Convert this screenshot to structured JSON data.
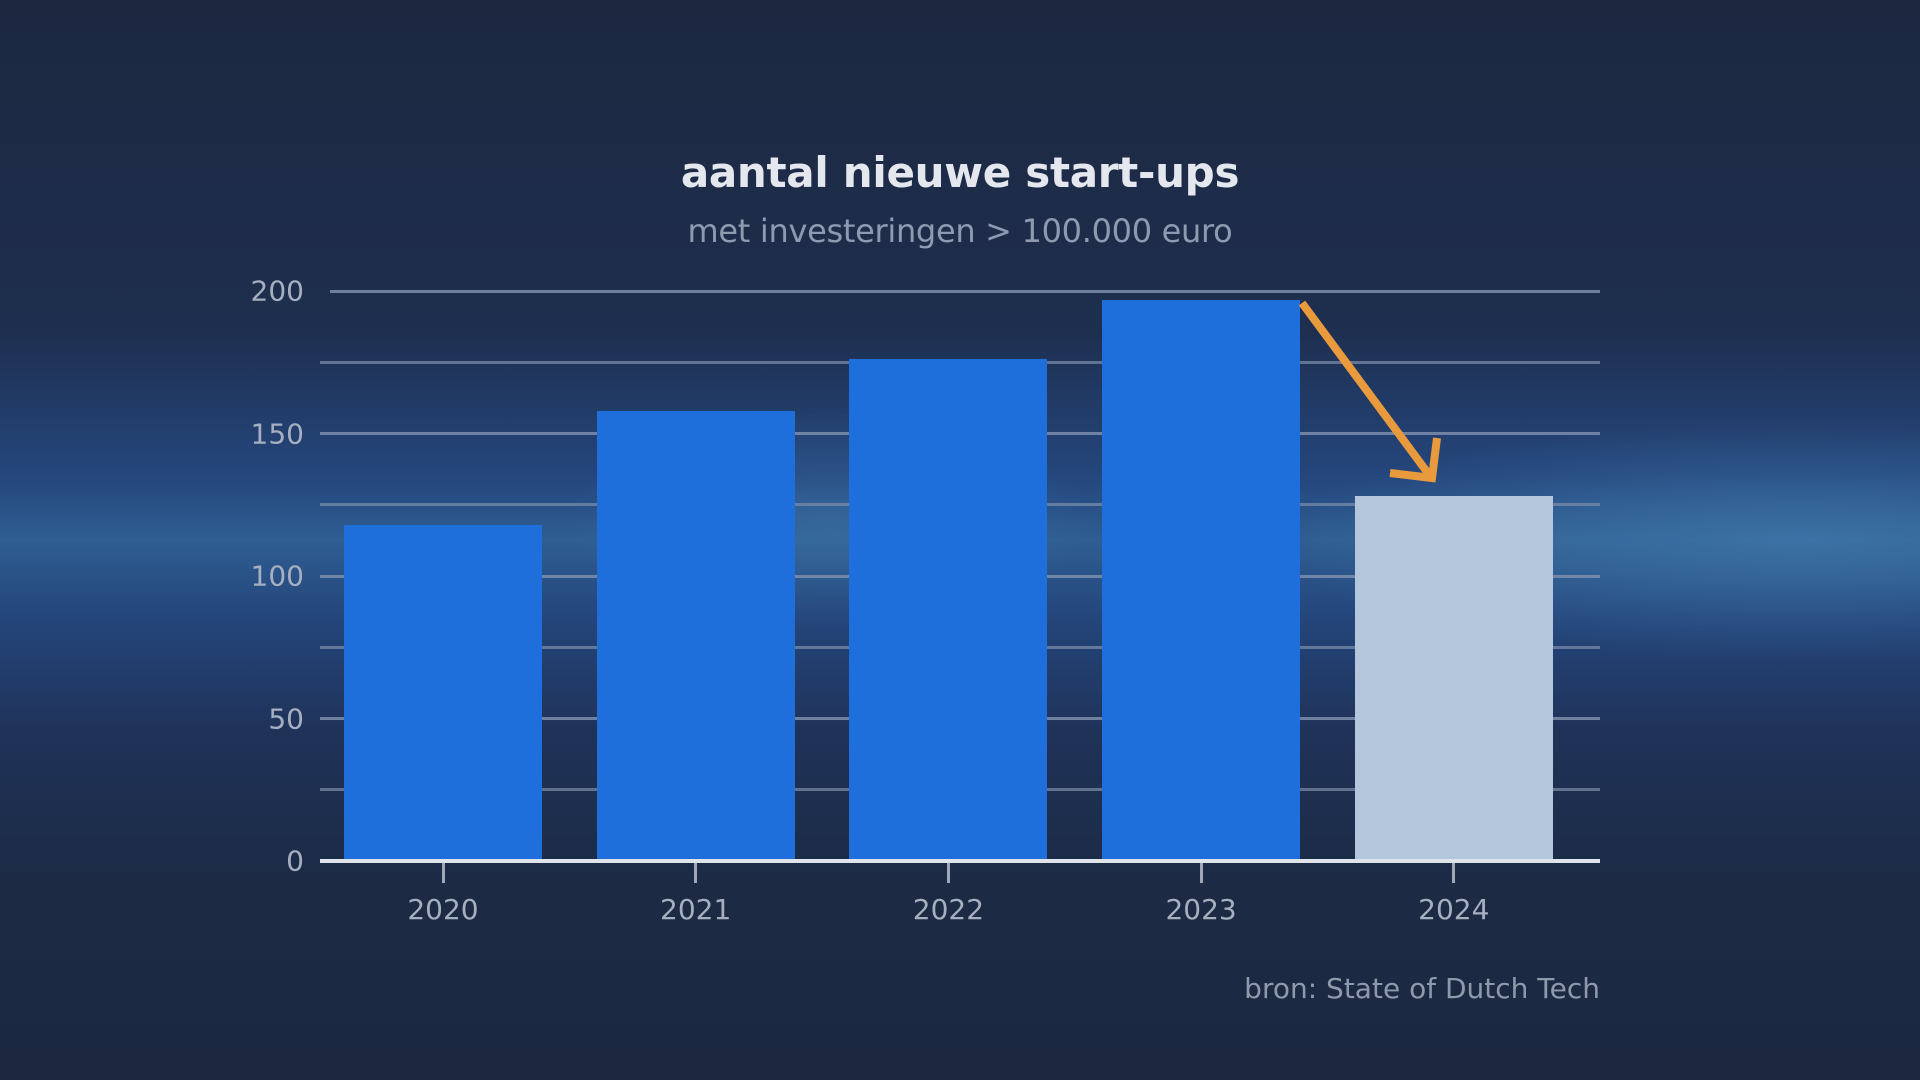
{
  "title": "aantal nieuwe start-ups",
  "subtitle": "met investeringen > 100.000 euro",
  "source": "bron: State of Dutch Tech",
  "colors": {
    "bar": "#1e6fdc",
    "bar_highlight": "#b4c6dc",
    "arrow": "#e89a3c",
    "gridline": "#7e8eab",
    "baseline": "#dfe4ea"
  },
  "chart_data": {
    "type": "bar",
    "title": "aantal nieuwe start-ups",
    "subtitle": "met investeringen > 100.000 euro",
    "categories": [
      "2020",
      "2021",
      "2022",
      "2023",
      "2024"
    ],
    "values": [
      118,
      158,
      176,
      197,
      128
    ],
    "highlighted_category": "2024",
    "xlabel": "",
    "ylabel": "",
    "ylim": [
      0,
      200
    ],
    "yticks": [
      0,
      50,
      100,
      150,
      200
    ],
    "yticks_labels": [
      "0",
      "50",
      "100",
      "150",
      "200"
    ],
    "minor_gridlines": [
      25,
      75,
      125,
      175
    ],
    "grid": true,
    "legend": null,
    "annotations": [
      {
        "type": "arrow",
        "from": "2023",
        "to": "2024",
        "direction": "down",
        "color": "#e89a3c"
      }
    ],
    "source": "bron: State of Dutch Tech"
  }
}
